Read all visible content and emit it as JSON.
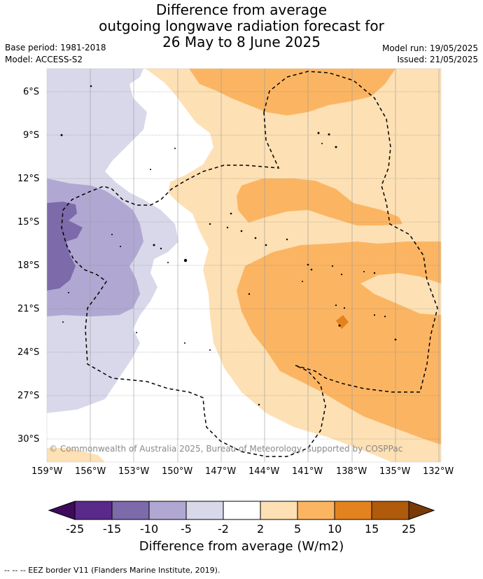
{
  "title": {
    "line1": "Difference from average",
    "line2": "outgoing longwave radiation forecast for",
    "line3": "26 May to 8 June 2025"
  },
  "meta": {
    "base_period": "Base period: 1981-2018",
    "model": "Model: ACCESS-S2",
    "model_run": "Model run: 19/05/2025",
    "issued": "Issued: 21/05/2025"
  },
  "copyright": "© Commonwealth of Australia 2025, Bureau of Meteorology, supported by COSPPac",
  "map": {
    "lat_ticks": [
      "6°S",
      "9°S",
      "12°S",
      "15°S",
      "18°S",
      "21°S",
      "24°S",
      "27°S",
      "30°S"
    ],
    "lon_ticks": [
      "159°W",
      "156°W",
      "153°W",
      "150°W",
      "147°W",
      "144°W",
      "141°W",
      "138°W",
      "135°W",
      "132°W"
    ]
  },
  "colorbar": {
    "labels": [
      "-25",
      "-15",
      "-10",
      "-5",
      "-2",
      "2",
      "5",
      "10",
      "15",
      "25"
    ],
    "colors": [
      "#3f0a5e",
      "#5a2a8a",
      "#7c6aaa",
      "#b0a8d2",
      "#d8d8ea",
      "#ffffff",
      "#fde0b4",
      "#fbb562",
      "#e3831f",
      "#b05a0c",
      "#7a3a08"
    ],
    "title": "Difference from average (W/m2)"
  },
  "footer": "-- -- -- EEZ border V11 (Flanders Marine Institute, 2019)."
}
